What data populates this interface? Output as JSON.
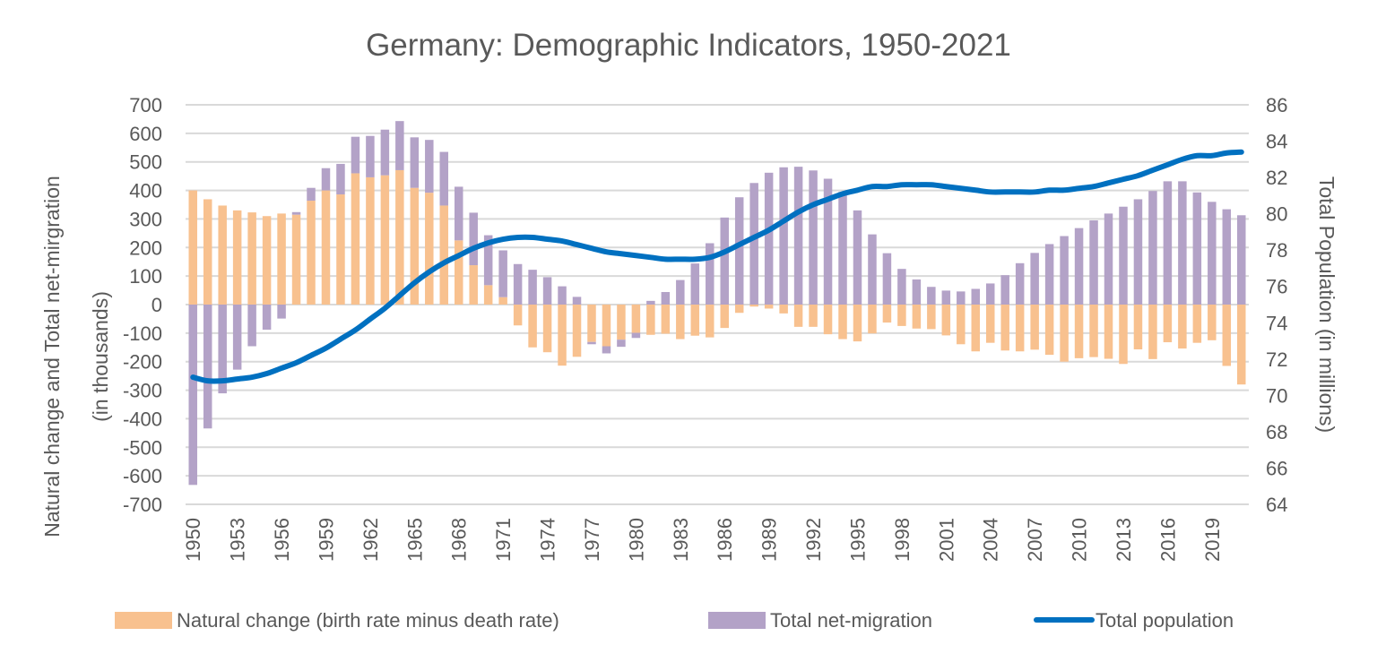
{
  "chart_data": {
    "type": "bar",
    "stacked": true,
    "title": "Germany: Demographic Indicators, 1950-2021",
    "ylabel": "Natural change and Total net-mirgration (in thousands)",
    "ylabel_line1": "Natural change and Total net-mirgration",
    "ylabel_line2": "(in thousands)",
    "y2label": "Total Population (in millions)",
    "ylim": [
      -700,
      700
    ],
    "y2lim": [
      64,
      86
    ],
    "yticks": [
      -700,
      -600,
      -500,
      -400,
      -300,
      -200,
      -100,
      0,
      100,
      200,
      300,
      400,
      500,
      600,
      700
    ],
    "y2ticks": [
      64,
      66,
      68,
      70,
      72,
      74,
      76,
      78,
      80,
      82,
      84,
      86
    ],
    "xtick_labels": [
      "1950",
      "1953",
      "1956",
      "1959",
      "1962",
      "1965",
      "1968",
      "1971",
      "1974",
      "1977",
      "1980",
      "1983",
      "1986",
      "1989",
      "1992",
      "1995",
      "1998",
      "2001",
      "2004",
      "2007",
      "2010",
      "2013",
      "2016",
      "2019"
    ],
    "grid": true,
    "legend_position": "bottom",
    "categories": [
      1950,
      1951,
      1952,
      1953,
      1954,
      1955,
      1956,
      1957,
      1958,
      1959,
      1960,
      1961,
      1962,
      1963,
      1964,
      1965,
      1966,
      1967,
      1968,
      1969,
      1970,
      1971,
      1972,
      1973,
      1974,
      1975,
      1976,
      1977,
      1978,
      1979,
      1980,
      1981,
      1982,
      1983,
      1984,
      1985,
      1986,
      1987,
      1988,
      1989,
      1990,
      1991,
      1992,
      1993,
      1994,
      1995,
      1996,
      1997,
      1998,
      1999,
      2000,
      2001,
      2002,
      2003,
      2004,
      2005,
      2006,
      2007,
      2008,
      2009,
      2010,
      2011,
      2012,
      2013,
      2014,
      2015,
      2016,
      2017,
      2018,
      2019,
      2020,
      2021
    ],
    "series": [
      {
        "name": "Natural change (birth rate minus death rate)",
        "type": "bar",
        "axis": "left",
        "color": "#F8C18F",
        "values": [
          400,
          369,
          347,
          330,
          323,
          310,
          319,
          315,
          364,
          400,
          386,
          460,
          446,
          453,
          471,
          409,
          392,
          347,
          225,
          138,
          68,
          26,
          -73,
          -150,
          -167,
          -214,
          -183,
          -131,
          -146,
          -123,
          -99,
          -106,
          -102,
          -121,
          -109,
          -115,
          -82,
          -29,
          -7,
          -14,
          -31,
          -78,
          -78,
          -104,
          -121,
          -129,
          -101,
          -63,
          -75,
          -84,
          -86,
          -108,
          -139,
          -164,
          -134,
          -161,
          -164,
          -158,
          -176,
          -200,
          -188,
          -184,
          -190,
          -208,
          -157,
          -191,
          -132,
          -154,
          -134,
          -125,
          -215,
          -280
        ]
      },
      {
        "name": "Total net-migration",
        "type": "bar",
        "axis": "left",
        "color": "#B3A2C7",
        "values": [
          -632,
          -434,
          -311,
          -228,
          -146,
          -88,
          -49,
          9,
          45,
          78,
          107,
          128,
          145,
          160,
          172,
          177,
          185,
          188,
          188,
          184,
          175,
          164,
          142,
          122,
          96,
          64,
          27,
          -8,
          -25,
          -25,
          -18,
          13,
          44,
          86,
          144,
          215,
          305,
          376,
          426,
          462,
          481,
          483,
          470,
          441,
          395,
          330,
          246,
          180,
          125,
          88,
          62,
          49,
          46,
          55,
          74,
          103,
          145,
          181,
          212,
          240,
          268,
          295,
          319,
          343,
          369,
          398,
          432,
          432,
          393,
          360,
          334,
          313
        ]
      },
      {
        "name": "Total population",
        "type": "line",
        "axis": "right",
        "color": "#0070C0",
        "values": [
          71.0,
          70.8,
          70.8,
          70.9,
          71.0,
          71.2,
          71.5,
          71.8,
          72.2,
          72.6,
          73.1,
          73.6,
          74.2,
          74.8,
          75.5,
          76.2,
          76.8,
          77.3,
          77.7,
          78.1,
          78.4,
          78.6,
          78.7,
          78.7,
          78.6,
          78.5,
          78.3,
          78.1,
          77.9,
          77.8,
          77.7,
          77.6,
          77.5,
          77.5,
          77.5,
          77.6,
          77.9,
          78.3,
          78.7,
          79.1,
          79.6,
          80.1,
          80.5,
          80.8,
          81.1,
          81.3,
          81.5,
          81.5,
          81.6,
          81.6,
          81.6,
          81.5,
          81.4,
          81.3,
          81.2,
          81.2,
          81.2,
          81.2,
          81.3,
          81.3,
          81.4,
          81.5,
          81.7,
          81.9,
          82.1,
          82.4,
          82.7,
          83.0,
          83.2,
          83.2,
          83.35,
          83.4
        ]
      }
    ]
  }
}
